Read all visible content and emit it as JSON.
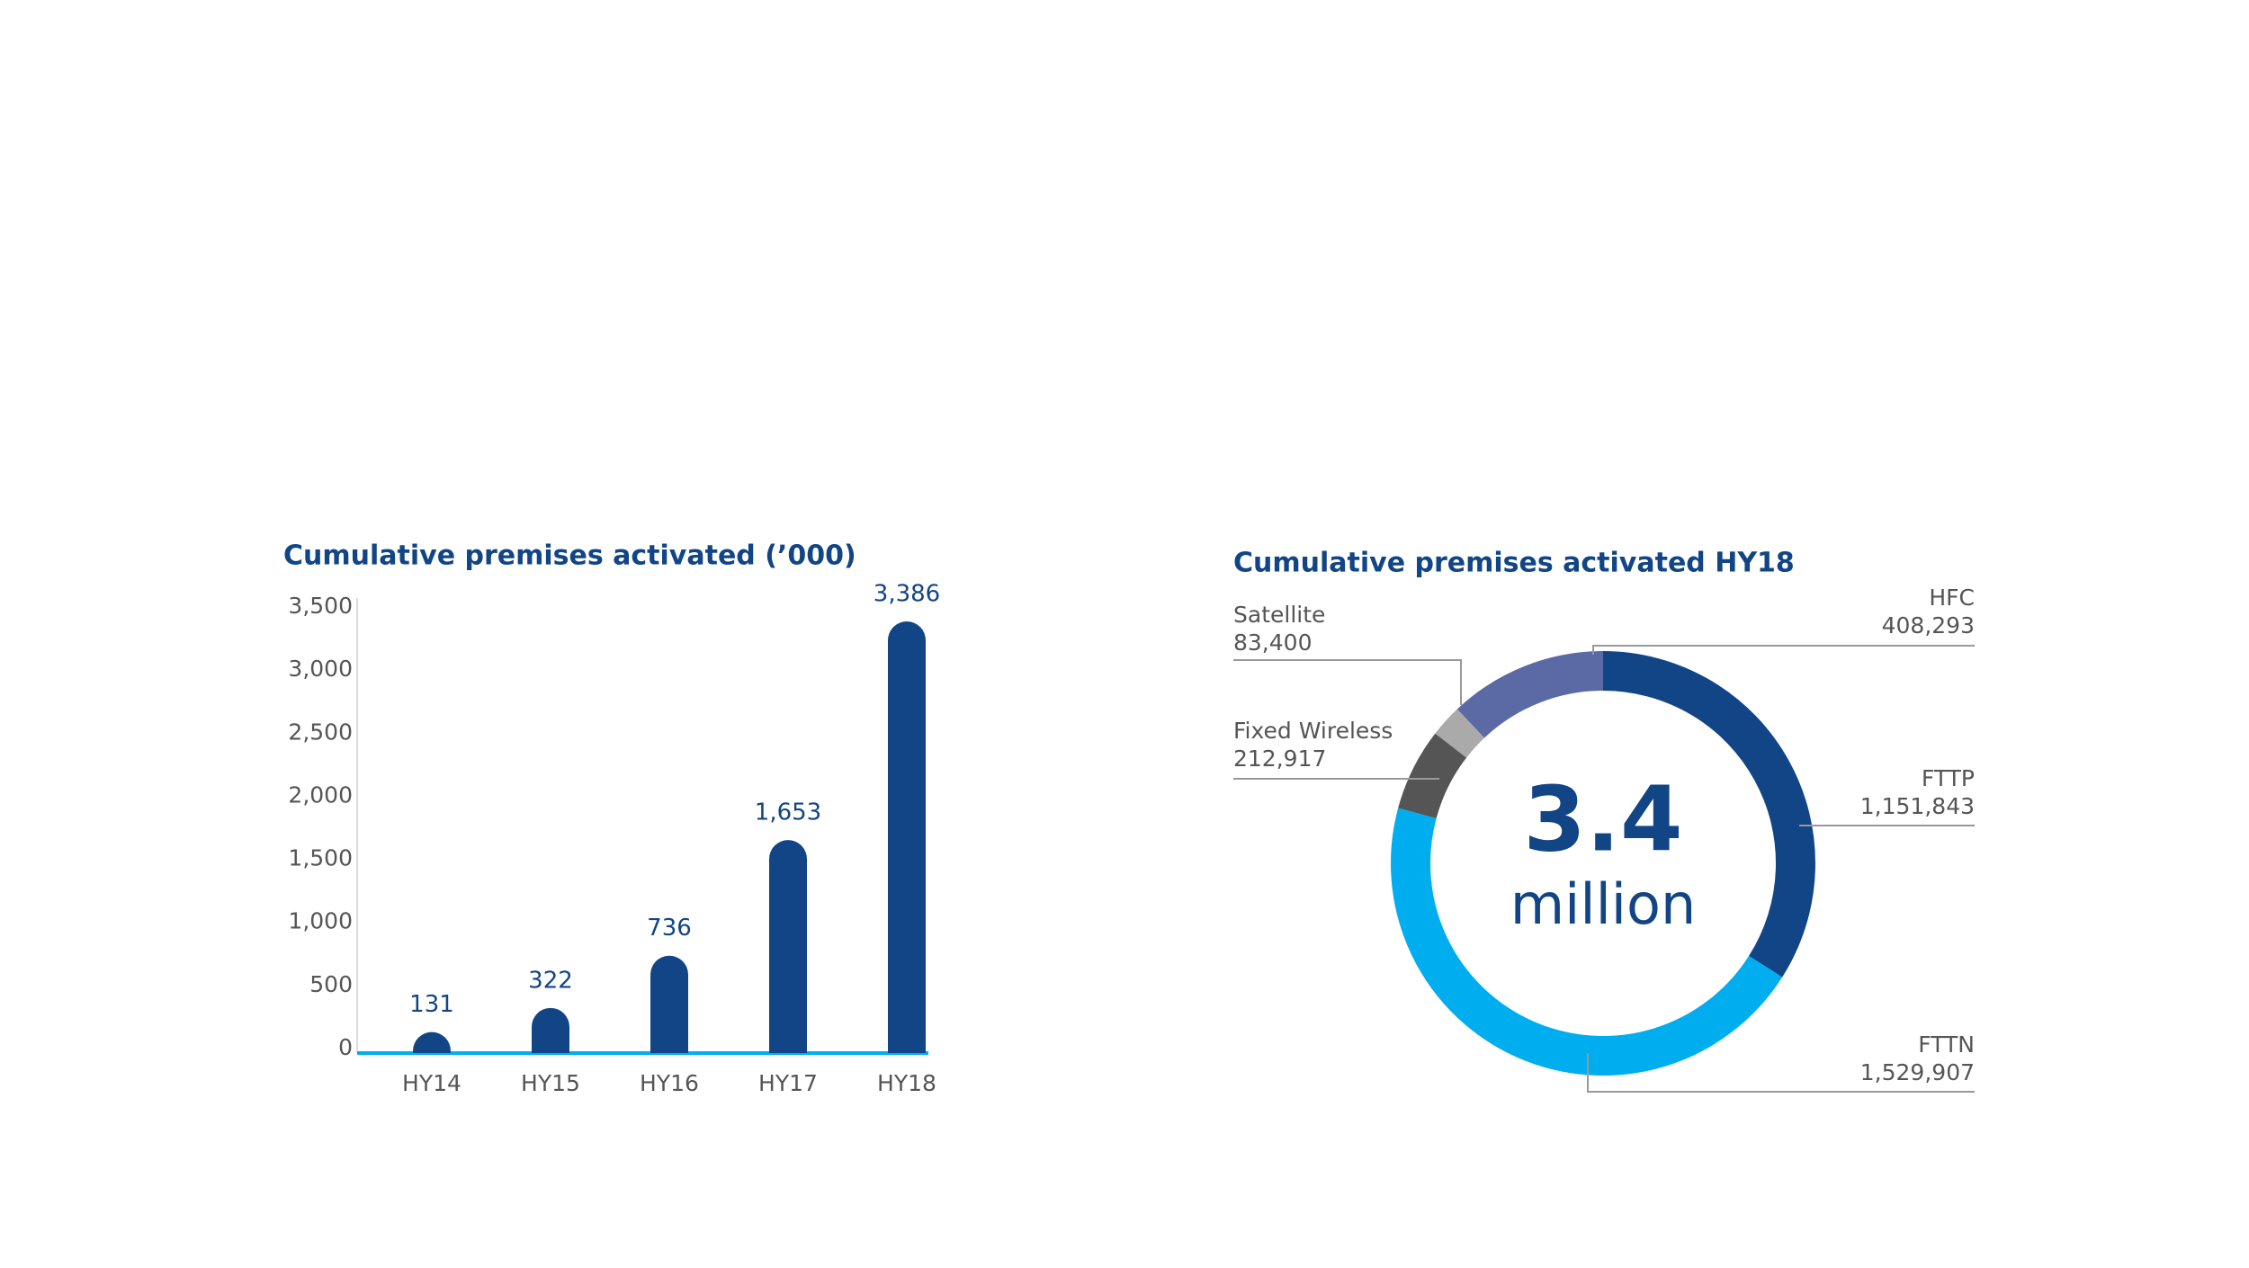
{
  "chart_data": [
    {
      "type": "bar",
      "title": "Cumulative premises activated (’000)",
      "categories": [
        "HY14",
        "HY15",
        "HY16",
        "HY17",
        "HY18"
      ],
      "values": [
        131,
        322,
        736,
        1653,
        3386
      ],
      "value_labels": [
        "131",
        "322",
        "736",
        "1,653",
        "3,386"
      ],
      "color": "#124586",
      "ylim": [
        0,
        3500
      ],
      "yticks": [
        0,
        500,
        {
          "value": 1000,
          "label": "1,000"
        },
        {
          "value": 1500,
          "label": "1,500"
        },
        {
          "value": 2000,
          "label": "2,000"
        },
        {
          "value": 2500,
          "label": "2,500"
        },
        {
          "value": 3000,
          "label": "3,000"
        },
        {
          "value": 3500,
          "label": "3,500"
        }
      ]
    },
    {
      "type": "donut",
      "title": "Cumulative premises activated HY18",
      "center_value": "3.4",
      "center_unit": "million",
      "categories": [
        "FTTP",
        "FTTN",
        "Fixed Wireless",
        "Satellite",
        "HFC"
      ],
      "values": [
        1151843,
        1529907,
        212917,
        83400,
        408293
      ],
      "value_labels": [
        "1,151,843",
        "1,529,907",
        "212,917",
        "83,400",
        "408,293"
      ],
      "colors": [
        "#124586",
        "#00aeef",
        "#555555",
        "#aaaaaa",
        "#5b6aa5"
      ]
    }
  ]
}
